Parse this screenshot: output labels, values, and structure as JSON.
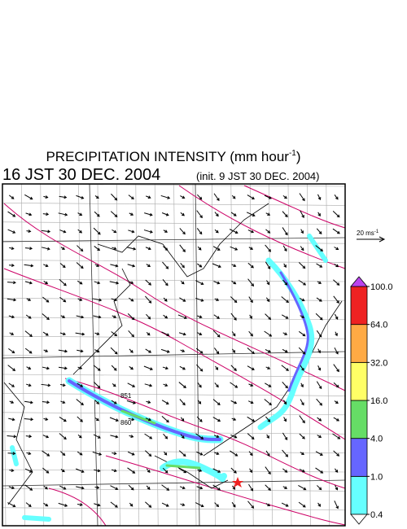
{
  "title": {
    "text": "PRECIPITATION INTENSITY (mm hour",
    "exponent": "-1",
    "close": ")"
  },
  "time": "16 JST 30 DEC. 2004",
  "init": "(init. 9 JST 30 DEC. 2004)",
  "scale_vector": {
    "label": "20 ms",
    "exponent": "-1"
  },
  "contour_labels": [
    "851",
    "860"
  ],
  "legend": {
    "levels": [
      {
        "value": 0.4,
        "label": "0.4"
      },
      {
        "value": 1,
        "label": "1.0"
      },
      {
        "value": 4,
        "label": "4.0"
      },
      {
        "value": 16,
        "label": "16.0"
      },
      {
        "value": 32,
        "label": "32.0"
      },
      {
        "value": 64,
        "label": "64.0"
      },
      {
        "value": 100,
        "label": "100.0"
      }
    ],
    "colors": [
      "#66ffff",
      "#6666ff",
      "#66dd66",
      "#ffff66",
      "#ffaa44",
      "#ee2222"
    ],
    "over_color": "#bb44ee",
    "under_color": "#ffffff"
  }
}
